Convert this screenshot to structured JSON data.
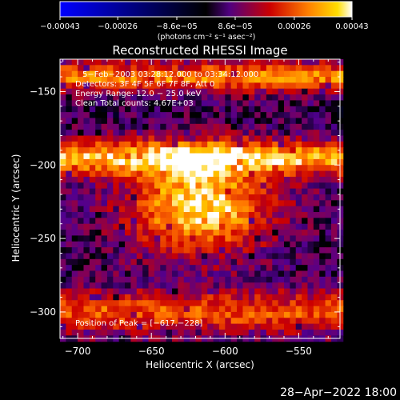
{
  "chart_data": {
    "type": "heatmap",
    "title": "Reconstructed RHESSI Image",
    "xlabel": "Heliocentric X (arcsec)",
    "ylabel": "Heliocentric Y (arcsec)",
    "xlim": [
      -712,
      -522
    ],
    "ylim": [
      -318,
      -128
    ],
    "x_ticks": [
      -700,
      -650,
      -600,
      -550
    ],
    "x_tick_labels": [
      "−700",
      "−650",
      "−600",
      "−550"
    ],
    "y_ticks": [
      -150,
      -200,
      -250,
      -300
    ],
    "y_tick_labels": [
      "−150",
      "−200",
      "−250",
      "−300"
    ],
    "colorbar": {
      "range": [
        -0.00043,
        0.00043
      ],
      "ticks": [
        -0.00043,
        -0.00026,
        -8.6e-05,
        8.6e-05,
        0.00026,
        0.00043
      ],
      "tick_labels": [
        "−0.00043",
        "−0.00026",
        "−8.6e−05",
        "8.6e−05",
        "0.00026",
        "0.00043"
      ],
      "units_label": "(photons cm⁻² s⁻¹ asec⁻²)"
    },
    "annotations": [
      "5−Feb−2003 03:28:12.000 to 03:34:12.000",
      "Detectors: 3F 4F 5F 6F 7F 8F, Att 0",
      "Energy Range: 12.0 − 25.0 keV",
      "Clean     Total counts: 4.67E+03"
    ],
    "peak_label": "Position of Peak = [−617,−228]",
    "peak": [
      -617,
      -228
    ],
    "footer_date": "28−Apr−2022 18:00",
    "grid": false,
    "legend": "none",
    "colormap": [
      "#0000ff",
      "#000040",
      "#000000",
      "#500090",
      "#cc0000",
      "#ff7000",
      "#ffcc00",
      "#ffffff"
    ]
  }
}
